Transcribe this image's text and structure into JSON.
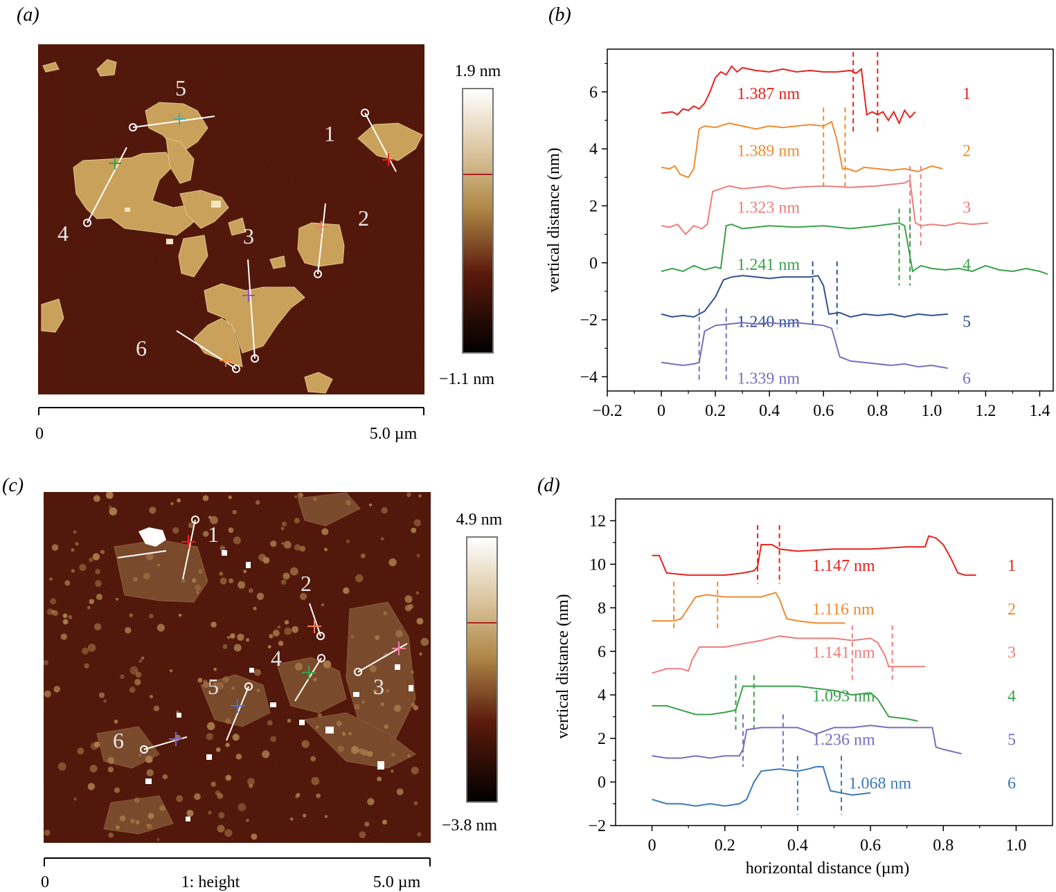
{
  "panels": {
    "a": {
      "label": "(a)",
      "image_labels": [
        "1",
        "2",
        "3",
        "4",
        "5",
        "6"
      ],
      "colorbar": {
        "max_label": "1.9 nm",
        "min_label": "−1.1 nm"
      },
      "scalebar": {
        "start_label": "0",
        "end_label": "5.0 µm"
      }
    },
    "b": {
      "label": "(b)"
    },
    "c": {
      "label": "(c)",
      "image_labels": [
        "1",
        "2",
        "3",
        "4",
        "5",
        "6"
      ],
      "colorbar": {
        "max_label": "4.9 nm",
        "min_label": "−3.8 nm"
      },
      "scalebar": {
        "start_label": "0",
        "mid_label": "1: height",
        "end_label": "5.0 µm"
      }
    },
    "d": {
      "label": "(d)"
    }
  },
  "colors": {
    "series": [
      "#e8211c",
      "#f08a2e",
      "#f07c7c",
      "#3aa04a",
      "#2e4f90",
      "#7a6cc0"
    ],
    "series_d": [
      "#e8211c",
      "#f08a2e",
      "#f07c7c",
      "#3aa04a",
      "#7a6cc0",
      "#3a78b8"
    ],
    "afm_substrate": "#5a1a0c",
    "afm_flake": "#c9a15a",
    "colorbar_top": "#ffffff",
    "colorbar_mid": "#b08848",
    "colorbar_low": "#5a1a0c",
    "colorbar_bottom": "#000000"
  },
  "chart_data": [
    {
      "type": "line",
      "panel": "b",
      "xlabel": "",
      "ylabel": "vertical distance (nm)",
      "xlim": [
        -0.2,
        1.45
      ],
      "ylim": [
        -4.5,
        7.5
      ],
      "xticks": [
        "−0.2",
        "0",
        "0.2",
        "0.4",
        "0.6",
        "0.8",
        "1.0",
        "1.2",
        "1.4"
      ],
      "xtick_values": [
        -0.2,
        0,
        0.2,
        0.4,
        0.6,
        0.8,
        1.0,
        1.2,
        1.4
      ],
      "yticks": [
        "−4",
        "−2",
        "0",
        "2",
        "4",
        "6"
      ],
      "ytick_values": [
        -4,
        -2,
        0,
        2,
        4,
        6
      ],
      "series": [
        {
          "name": "1",
          "height_label": "1.387 nm",
          "label_at": [
            0.28,
            5.75
          ],
          "markers": [
            0.71,
            0.8
          ],
          "x": [
            0,
            0.04,
            0.06,
            0.08,
            0.1,
            0.12,
            0.14,
            0.16,
            0.18,
            0.2,
            0.22,
            0.24,
            0.26,
            0.28,
            0.3,
            0.35,
            0.4,
            0.45,
            0.5,
            0.55,
            0.6,
            0.65,
            0.7,
            0.72,
            0.74,
            0.76,
            0.78,
            0.8,
            0.82,
            0.84,
            0.86,
            0.88,
            0.9,
            0.92,
            0.94
          ],
          "y": [
            5.25,
            5.3,
            5.2,
            5.4,
            5.35,
            5.5,
            5.4,
            5.6,
            6.0,
            6.5,
            6.7,
            6.6,
            6.9,
            6.7,
            6.85,
            6.75,
            6.7,
            6.8,
            6.7,
            6.75,
            6.7,
            6.7,
            6.75,
            6.65,
            6.8,
            5.2,
            5.3,
            5.2,
            5.3,
            5.0,
            5.3,
            4.9,
            5.35,
            5.1,
            5.3
          ]
        },
        {
          "name": "2",
          "height_label": "1.389 nm",
          "label_at": [
            0.28,
            3.75
          ],
          "markers": [
            0.6,
            0.68
          ],
          "x": [
            0,
            0.03,
            0.05,
            0.07,
            0.1,
            0.12,
            0.14,
            0.16,
            0.2,
            0.25,
            0.3,
            0.35,
            0.4,
            0.45,
            0.5,
            0.55,
            0.6,
            0.63,
            0.65,
            0.67,
            0.69,
            0.72,
            0.75,
            0.8,
            0.85,
            0.9,
            0.95,
            1.0,
            1.04
          ],
          "y": [
            3.35,
            3.3,
            3.4,
            3.1,
            3.0,
            3.3,
            4.7,
            4.8,
            4.75,
            4.9,
            4.8,
            4.7,
            4.8,
            4.75,
            4.8,
            4.85,
            4.8,
            4.95,
            4.3,
            3.3,
            3.3,
            3.2,
            3.35,
            3.3,
            3.25,
            3.3,
            3.2,
            3.4,
            3.3
          ]
        },
        {
          "name": "3",
          "height_label": "1.323 nm",
          "label_at": [
            0.28,
            1.75
          ],
          "markers": [
            0.92,
            0.96
          ],
          "x": [
            0,
            0.03,
            0.06,
            0.09,
            0.12,
            0.15,
            0.17,
            0.19,
            0.22,
            0.25,
            0.3,
            0.35,
            0.4,
            0.45,
            0.5,
            0.6,
            0.7,
            0.8,
            0.85,
            0.9,
            0.92,
            0.94,
            0.96,
            1.0,
            1.05,
            1.1,
            1.15,
            1.21
          ],
          "y": [
            1.3,
            1.25,
            1.35,
            1.0,
            1.3,
            1.2,
            1.35,
            2.5,
            2.6,
            2.7,
            2.6,
            2.65,
            2.7,
            2.6,
            2.65,
            2.7,
            2.65,
            2.7,
            2.75,
            2.8,
            2.9,
            1.4,
            1.3,
            1.35,
            1.3,
            1.4,
            1.35,
            1.4
          ]
        },
        {
          "name": "4",
          "height_label": "1.241 nm",
          "label_at": [
            0.28,
            -0.25
          ],
          "markers": [
            0.88,
            0.92
          ],
          "x": [
            0,
            0.04,
            0.08,
            0.12,
            0.16,
            0.2,
            0.22,
            0.24,
            0.26,
            0.3,
            0.4,
            0.5,
            0.6,
            0.7,
            0.8,
            0.88,
            0.9,
            0.93,
            0.96,
            1.0,
            1.05,
            1.1,
            1.15,
            1.2,
            1.25,
            1.3,
            1.35,
            1.4,
            1.43
          ],
          "y": [
            -0.3,
            -0.2,
            -0.3,
            -0.1,
            -0.25,
            -0.15,
            -0.2,
            1.3,
            1.35,
            1.2,
            1.3,
            1.25,
            1.3,
            1.2,
            1.3,
            1.4,
            1.3,
            -0.3,
            -0.1,
            -0.2,
            -0.25,
            -0.2,
            -0.3,
            -0.1,
            -0.25,
            -0.3,
            -0.2,
            -0.3,
            -0.4
          ]
        },
        {
          "name": "5",
          "height_label": "1.240 nm",
          "label_at": [
            0.28,
            -2.25
          ],
          "markers": [
            0.56,
            0.65
          ],
          "x": [
            0,
            0.04,
            0.08,
            0.12,
            0.16,
            0.2,
            0.23,
            0.26,
            0.3,
            0.35,
            0.4,
            0.45,
            0.5,
            0.55,
            0.58,
            0.6,
            0.62,
            0.66,
            0.7,
            0.75,
            0.8,
            0.85,
            0.9,
            0.95,
            1.0,
            1.06
          ],
          "y": [
            -1.8,
            -1.9,
            -1.85,
            -1.9,
            -1.7,
            -1.2,
            -0.6,
            -0.5,
            -0.45,
            -0.5,
            -0.55,
            -0.5,
            -0.5,
            -0.5,
            -0.45,
            -0.8,
            -1.8,
            -1.75,
            -1.9,
            -1.8,
            -1.85,
            -1.8,
            -1.9,
            -1.8,
            -1.85,
            -1.8
          ]
        },
        {
          "name": "6",
          "height_label": "1.339 nm",
          "label_at": [
            0.28,
            -4.25
          ],
          "markers": [
            0.14,
            0.24
          ],
          "x": [
            0,
            0.04,
            0.08,
            0.12,
            0.14,
            0.16,
            0.2,
            0.25,
            0.3,
            0.35,
            0.4,
            0.45,
            0.5,
            0.55,
            0.6,
            0.63,
            0.66,
            0.7,
            0.75,
            0.8,
            0.85,
            0.9,
            0.95,
            1.0,
            1.06
          ],
          "y": [
            -3.5,
            -3.55,
            -3.6,
            -3.55,
            -3.5,
            -2.4,
            -2.2,
            -2.15,
            -2.1,
            -2.15,
            -2.1,
            -2.15,
            -2.1,
            -2.15,
            -2.2,
            -2.3,
            -3.3,
            -3.45,
            -3.5,
            -3.55,
            -3.6,
            -3.55,
            -3.65,
            -3.6,
            -3.7
          ]
        }
      ]
    },
    {
      "type": "line",
      "panel": "d",
      "xlabel": "horizontal distance (µm)",
      "ylabel": "vertical distance (nm)",
      "xlim": [
        -0.1,
        1.1
      ],
      "ylim": [
        -2,
        13
      ],
      "xticks": [
        "0",
        "0.2",
        "0.4",
        "0.6",
        "0.8",
        "1.0"
      ],
      "xtick_values": [
        0,
        0.2,
        0.4,
        0.6,
        0.8,
        1.0
      ],
      "yticks": [
        "−2",
        "0",
        "2",
        "4",
        "6",
        "8",
        "10",
        "12"
      ],
      "ytick_values": [
        -2,
        0,
        2,
        4,
        6,
        8,
        10,
        12
      ],
      "series": [
        {
          "name": "1",
          "height_label": "1.147 nm",
          "label_at": [
            0.44,
            9.7
          ],
          "markers": [
            0.29,
            0.35
          ],
          "x": [
            0,
            0.02,
            0.04,
            0.1,
            0.2,
            0.25,
            0.28,
            0.29,
            0.3,
            0.33,
            0.35,
            0.4,
            0.5,
            0.6,
            0.7,
            0.74,
            0.75,
            0.76,
            0.78,
            0.8,
            0.82,
            0.84,
            0.86,
            0.89
          ],
          "y": [
            10.4,
            10.4,
            9.6,
            9.5,
            9.5,
            9.6,
            9.7,
            9.9,
            10.9,
            10.9,
            10.7,
            10.6,
            10.7,
            10.7,
            10.8,
            10.8,
            10.8,
            11.3,
            11.2,
            10.9,
            10.3,
            9.6,
            9.5,
            9.5
          ]
        },
        {
          "name": "2",
          "height_label": "1.116 nm",
          "label_at": [
            0.44,
            7.7
          ],
          "markers": [
            0.06,
            0.18
          ],
          "x": [
            0,
            0.06,
            0.08,
            0.1,
            0.12,
            0.15,
            0.2,
            0.25,
            0.3,
            0.34,
            0.35,
            0.37,
            0.4,
            0.45,
            0.5,
            0.53
          ],
          "y": [
            7.4,
            7.4,
            7.5,
            8.0,
            8.5,
            8.6,
            8.5,
            8.5,
            8.5,
            8.7,
            8.4,
            7.5,
            7.4,
            7.3,
            7.3,
            7.3
          ]
        },
        {
          "name": "3",
          "height_label": "1.141 nm",
          "label_at": [
            0.44,
            5.7
          ],
          "markers": [
            0.55,
            0.66
          ],
          "x": [
            0,
            0.04,
            0.08,
            0.1,
            0.11,
            0.13,
            0.2,
            0.3,
            0.35,
            0.4,
            0.5,
            0.55,
            0.6,
            0.62,
            0.64,
            0.65,
            0.68,
            0.72,
            0.75
          ],
          "y": [
            5.0,
            5.2,
            5.2,
            5.1,
            5.6,
            6.2,
            6.2,
            6.5,
            6.7,
            6.6,
            6.6,
            6.5,
            6.6,
            6.4,
            5.8,
            5.3,
            5.3,
            5.3,
            5.3
          ]
        },
        {
          "name": "4",
          "height_label": "1.093 nm",
          "label_at": [
            0.44,
            3.7
          ],
          "markers": [
            0.23,
            0.28
          ],
          "x": [
            0,
            0.04,
            0.08,
            0.12,
            0.16,
            0.2,
            0.23,
            0.25,
            0.3,
            0.4,
            0.5,
            0.55,
            0.6,
            0.62,
            0.65,
            0.7,
            0.73
          ],
          "y": [
            3.5,
            3.5,
            3.3,
            3.1,
            3.1,
            3.2,
            3.3,
            4.4,
            4.4,
            4.4,
            4.2,
            4.0,
            4.1,
            3.8,
            3.0,
            2.9,
            2.8
          ]
        },
        {
          "name": "5",
          "height_label": "1.236 nm",
          "label_at": [
            0.44,
            1.7
          ],
          "markers": [
            0.25,
            0.36
          ],
          "x": [
            0,
            0.04,
            0.08,
            0.12,
            0.16,
            0.2,
            0.24,
            0.25,
            0.26,
            0.3,
            0.4,
            0.45,
            0.5,
            0.55,
            0.6,
            0.65,
            0.7,
            0.75,
            0.77,
            0.78,
            0.8,
            0.85
          ],
          "y": [
            1.2,
            1.1,
            1.1,
            1.2,
            1.1,
            1.2,
            1.2,
            1.5,
            2.4,
            2.5,
            2.5,
            2.2,
            2.5,
            2.5,
            2.6,
            2.5,
            2.5,
            2.5,
            2.5,
            1.6,
            1.5,
            1.3
          ]
        },
        {
          "name": "6",
          "height_label": "1.068 nm",
          "label_at": [
            0.54,
            -0.3
          ],
          "markers": [
            0.4,
            0.52
          ],
          "x": [
            0,
            0.04,
            0.08,
            0.12,
            0.16,
            0.2,
            0.24,
            0.26,
            0.28,
            0.3,
            0.35,
            0.4,
            0.43,
            0.45,
            0.47,
            0.49,
            0.52,
            0.55,
            0.6
          ],
          "y": [
            -0.8,
            -1.0,
            -1.0,
            -1.1,
            -1.0,
            -1.1,
            -1.0,
            -0.8,
            0.0,
            0.5,
            0.6,
            0.5,
            0.6,
            0.7,
            0.7,
            -0.4,
            -0.5,
            -0.6,
            -0.5
          ]
        }
      ]
    }
  ]
}
